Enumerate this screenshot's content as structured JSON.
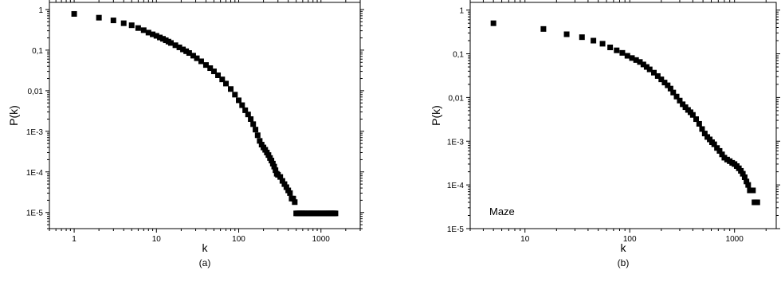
{
  "chart_data": [
    {
      "panel": "(a)",
      "type": "scatter",
      "title": "",
      "xlabel": "k",
      "ylabel": "P(k)",
      "xscale": "log",
      "yscale": "log",
      "xlim": [
        0.5,
        3000
      ],
      "ylim": [
        4e-06,
        1.5
      ],
      "xticks": [
        1,
        10,
        100,
        1000
      ],
      "xtick_labels": [
        "1",
        "10",
        "100",
        "1000"
      ],
      "yticks": [
        1,
        0.1,
        0.01,
        0.001,
        0.0001,
        1e-05
      ],
      "ytick_labels": [
        "1",
        "0,1",
        "0,01",
        "1E-3",
        "1E-4",
        "1E-5"
      ],
      "grid": false,
      "legend": "none",
      "annotation": "",
      "marker": "square",
      "color": "#000000",
      "x": [
        1,
        2,
        3,
        4,
        5,
        6,
        7,
        8,
        9,
        10,
        11,
        12,
        13,
        14,
        15,
        17,
        19,
        21,
        23,
        25,
        28,
        31,
        35,
        40,
        45,
        50,
        56,
        63,
        70,
        80,
        90,
        100,
        110,
        120,
        130,
        140,
        150,
        160,
        170,
        180,
        190,
        200,
        210,
        220,
        230,
        240,
        250,
        260,
        270,
        280,
        290,
        300,
        320,
        340,
        360,
        380,
        400,
        420,
        440,
        460,
        480,
        500,
        520,
        540,
        560,
        580,
        600,
        620,
        650,
        680,
        710,
        740,
        770,
        800,
        840,
        880,
        920,
        960,
        1000,
        1050,
        1100,
        1150,
        1200,
        1250,
        1300,
        1350,
        1400,
        1450,
        1500
      ],
      "y": [
        0.78,
        0.63,
        0.54,
        0.46,
        0.41,
        0.35,
        0.31,
        0.27,
        0.245,
        0.225,
        0.205,
        0.19,
        0.175,
        0.162,
        0.15,
        0.132,
        0.117,
        0.104,
        0.094,
        0.085,
        0.073,
        0.063,
        0.053,
        0.043,
        0.036,
        0.03,
        0.024,
        0.019,
        0.015,
        0.011,
        0.008,
        0.0058,
        0.0044,
        0.0033,
        0.0026,
        0.002,
        0.0015,
        0.0011,
        0.0008,
        0.00058,
        0.00047,
        0.0004,
        0.00035,
        0.0003,
        0.00026,
        0.00022,
        0.00019,
        0.00016,
        0.000135,
        0.00011,
        9e-05,
        8.5e-05,
        7.5e-05,
        6e-05,
        5e-05,
        4.2e-05,
        3.5e-05,
        3e-05,
        2.2e-05,
        2.2e-05,
        1.8e-05,
        9.5e-06,
        9.5e-06,
        9.5e-06,
        9.5e-06,
        9.5e-06,
        9.5e-06,
        9.5e-06,
        9.5e-06,
        9.5e-06,
        9.5e-06,
        9.5e-06,
        9.5e-06,
        9.5e-06,
        9.5e-06,
        9.5e-06,
        9.5e-06,
        9.5e-06,
        9.5e-06,
        9.5e-06,
        9.5e-06,
        9.5e-06,
        9.5e-06,
        9.5e-06,
        9.5e-06,
        9.5e-06,
        9.5e-06,
        9.5e-06,
        9.5e-06
      ]
    },
    {
      "panel": "(b)",
      "type": "scatter",
      "title": "",
      "xlabel": "k",
      "ylabel": "P(k)",
      "xscale": "log",
      "yscale": "log",
      "xlim": [
        3,
        2500
      ],
      "ylim": [
        1e-05,
        1.5
      ],
      "xticks": [
        10,
        100,
        1000
      ],
      "xtick_labels": [
        "10",
        "100",
        "1000"
      ],
      "yticks": [
        1,
        0.1,
        0.01,
        0.001,
        0.0001,
        1e-05
      ],
      "ytick_labels": [
        "1",
        "0,1",
        "0,01",
        "1E-3",
        "1E-4",
        "1E-5"
      ],
      "grid": false,
      "legend": "none",
      "annotation": "Maze",
      "marker": "square",
      "color": "#000000",
      "x": [
        5,
        15,
        25,
        35,
        45,
        55,
        65,
        75,
        85,
        95,
        105,
        115,
        125,
        135,
        145,
        155,
        170,
        185,
        200,
        215,
        230,
        245,
        260,
        280,
        300,
        320,
        340,
        360,
        380,
        400,
        430,
        460,
        490,
        520,
        550,
        580,
        610,
        640,
        680,
        720,
        760,
        800,
        850,
        900,
        950,
        1000,
        1050,
        1100,
        1150,
        1200,
        1250,
        1300,
        1350,
        1400,
        1450,
        1500,
        1550,
        1600,
        1650
      ],
      "y": [
        0.5,
        0.37,
        0.28,
        0.24,
        0.2,
        0.17,
        0.14,
        0.12,
        0.105,
        0.09,
        0.08,
        0.072,
        0.065,
        0.057,
        0.05,
        0.044,
        0.037,
        0.031,
        0.026,
        0.022,
        0.019,
        0.016,
        0.013,
        0.0105,
        0.0085,
        0.007,
        0.006,
        0.0052,
        0.0046,
        0.004,
        0.0032,
        0.0025,
        0.0019,
        0.0015,
        0.00125,
        0.0011,
        0.00095,
        0.00085,
        0.0007,
        0.0006,
        0.0005,
        0.00042,
        0.00038,
        0.00035,
        0.00032,
        0.0003,
        0.00027,
        0.00024,
        0.00021,
        0.00018,
        0.00015,
        0.00012,
        0.0001,
        7.5e-05,
        7.5e-05,
        7.5e-05,
        4e-05,
        4e-05,
        4e-05
      ]
    }
  ]
}
